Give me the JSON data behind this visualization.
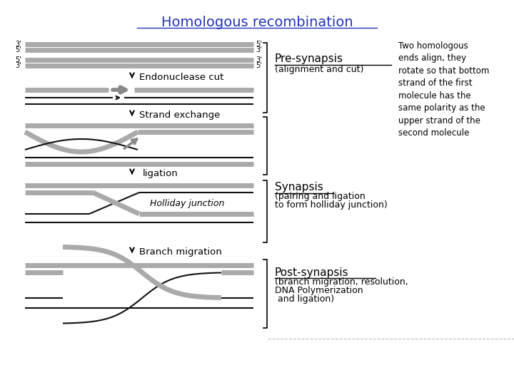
{
  "title": "Homologous recombination",
  "title_color": "#2233bb",
  "bg_color": "#ffffff",
  "gray_strand": "#aaaaaa",
  "dark_gray": "#888888",
  "black_strand": "#111111",
  "pre_synapsis_label": "Pre-synapsis",
  "pre_synapsis_sub": "(alignment and cut)",
  "synapsis_label": "Synapsis",
  "synapsis_sub1": "(pairing and ligation",
  "synapsis_sub2": "to form holliday junction)",
  "post_synapsis_label": "Post-synapsis",
  "post_synapsis_sub1": "(branch migration, resolution,",
  "post_synapsis_sub2": "DNA Polymerization",
  "post_synapsis_sub3": " and ligation)",
  "right_text": "Two homologous\nends align, they\nrotate so that bottom\nstrand of the first\nmolecule has the\nsame polarity as the\nupper strand of the\nsecond molecule",
  "step1_label": "Endonuclease cut",
  "step2_label": "Strand exchange",
  "step3_label": "ligation",
  "step4_label": "Branch migration",
  "holliday_label": "Holliday junction"
}
